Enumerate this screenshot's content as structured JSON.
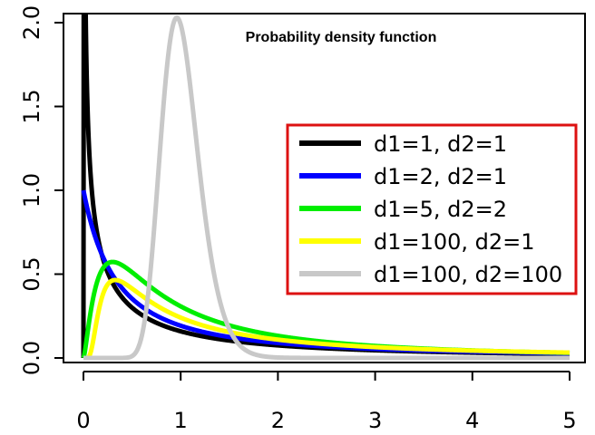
{
  "chart_data": {
    "type": "line",
    "title": "Probability density function",
    "xlabel": "",
    "ylabel": "",
    "xlim": [
      0,
      5
    ],
    "ylim": [
      0,
      2.0
    ],
    "x_ticks": [
      "0",
      "1",
      "2",
      "3",
      "4",
      "5"
    ],
    "y_ticks": [
      "0.0",
      "0.5",
      "1.0",
      "1.5",
      "2.0"
    ],
    "legend_position": "right",
    "series": [
      {
        "name": "d1=1, d2=1",
        "d1": 1,
        "d2": 1,
        "color": "#000000"
      },
      {
        "name": "d1=2, d2=1",
        "d1": 2,
        "d2": 1,
        "color": "#0000ff"
      },
      {
        "name": "d1=5, d2=2",
        "d1": 5,
        "d2": 2,
        "color": "#00ee00"
      },
      {
        "name": "d1=100, d2=1",
        "d1": 100,
        "d2": 1,
        "color": "#ffff00"
      },
      {
        "name": "d1=100, d2=100",
        "d1": 100,
        "d2": 100,
        "color": "#c8c8c8"
      }
    ],
    "legend_border_color": "#dd1111"
  }
}
